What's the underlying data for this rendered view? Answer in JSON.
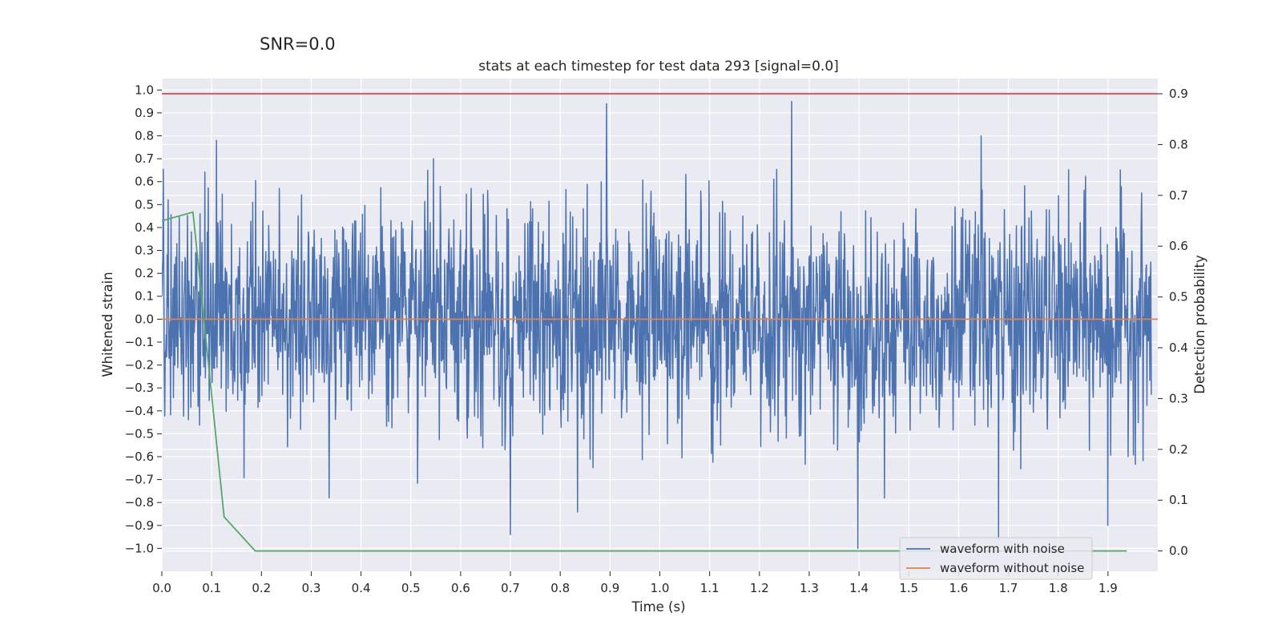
{
  "suptitle": "SNR=0.0",
  "chart_data": {
    "type": "line",
    "title": "stats at each timestep for test data 293 [signal=0.0]",
    "xlabel": "Time (s)",
    "ylabel": "Whitened strain",
    "ylabel_right": "Detection probability",
    "xlim": [
      0.0,
      2.0
    ],
    "ylim": [
      -1.1,
      1.05
    ],
    "ylim_right": [
      -0.04,
      0.93
    ],
    "x_ticks": [
      0.0,
      0.1,
      0.2,
      0.3,
      0.4,
      0.5,
      0.6,
      0.7,
      0.8,
      0.9,
      1.0,
      1.1,
      1.2,
      1.3,
      1.4,
      1.5,
      1.6,
      1.7,
      1.8,
      1.9
    ],
    "x_tick_labels": [
      "0.0",
      "0.1",
      "0.2",
      "0.3",
      "0.4",
      "0.5",
      "0.6",
      "0.7",
      "0.8",
      "0.9",
      "1.0",
      "1.1",
      "1.2",
      "1.3",
      "1.4",
      "1.5",
      "1.6",
      "1.7",
      "1.8",
      "1.9"
    ],
    "y_ticks": [
      1.0,
      0.9,
      0.8,
      0.7,
      0.6,
      0.5,
      0.4,
      0.3,
      0.2,
      0.1,
      0.0,
      -0.1,
      -0.2,
      -0.3,
      -0.4,
      -0.5,
      -0.6,
      -0.7,
      -0.8,
      -0.9,
      -1.0
    ],
    "y_tick_labels": [
      "1.0",
      "0.9",
      "0.8",
      "0.7",
      "0.6",
      "0.5",
      "0.4",
      "0.3",
      "0.2",
      "0.1",
      "0.0",
      "−0.1",
      "−0.2",
      "−0.3",
      "−0.4",
      "−0.5",
      "−0.6",
      "−0.7",
      "−0.8",
      "−0.9",
      "−1.0"
    ],
    "y_right_ticks": [
      0.9,
      0.8,
      0.7,
      0.6,
      0.5,
      0.4,
      0.3,
      0.2,
      0.1,
      0.0
    ],
    "y_right_tick_labels": [
      "0.9",
      "0.8",
      "0.7",
      "0.6",
      "0.5",
      "0.4",
      "0.3",
      "0.2",
      "0.1",
      "0.0"
    ],
    "grid": true,
    "legend_position": "bottom-right",
    "series": [
      {
        "name": "waveform with noise",
        "axis": "left",
        "color": "#4c72b0",
        "noise_description": "approx. white noise, 2048 samples over 0–2 s, amplitude mostly within ±0.6",
        "peaks": [
          {
            "x": 0.893,
            "y": 0.94
          },
          {
            "x": 1.265,
            "y": 0.95
          },
          {
            "x": 1.645,
            "y": 0.8
          },
          {
            "x": 0.11,
            "y": 0.78
          },
          {
            "x": 1.398,
            "y": -1.0
          },
          {
            "x": 1.68,
            "y": -0.96
          },
          {
            "x": 0.7,
            "y": -0.94
          },
          {
            "x": 1.9,
            "y": -0.9
          }
        ]
      },
      {
        "name": "waveform without noise",
        "axis": "left",
        "color": "#dd8452",
        "x": [
          0.0,
          2.0
        ],
        "y": [
          0.0,
          0.0
        ]
      },
      {
        "name": "",
        "axis": "right",
        "color": "#55a868",
        "x": [
          0.0,
          0.0625,
          0.125,
          0.1875,
          0.25,
          0.5,
          1.0,
          1.25,
          1.5,
          1.75,
          1.9375
        ],
        "y": [
          0.65,
          0.667,
          0.067,
          0.0,
          0.0,
          0.0,
          0.0,
          0.0,
          0.0,
          0.0,
          0.0
        ]
      },
      {
        "name": "",
        "axis": "right",
        "color": "#c44e52",
        "x": [
          0.0,
          2.0
        ],
        "y": [
          0.9,
          0.9
        ]
      }
    ]
  },
  "legend": {
    "items": [
      {
        "label": "waveform with noise",
        "color": "#4c72b0"
      },
      {
        "label": "waveform without noise",
        "color": "#dd8452"
      }
    ]
  }
}
